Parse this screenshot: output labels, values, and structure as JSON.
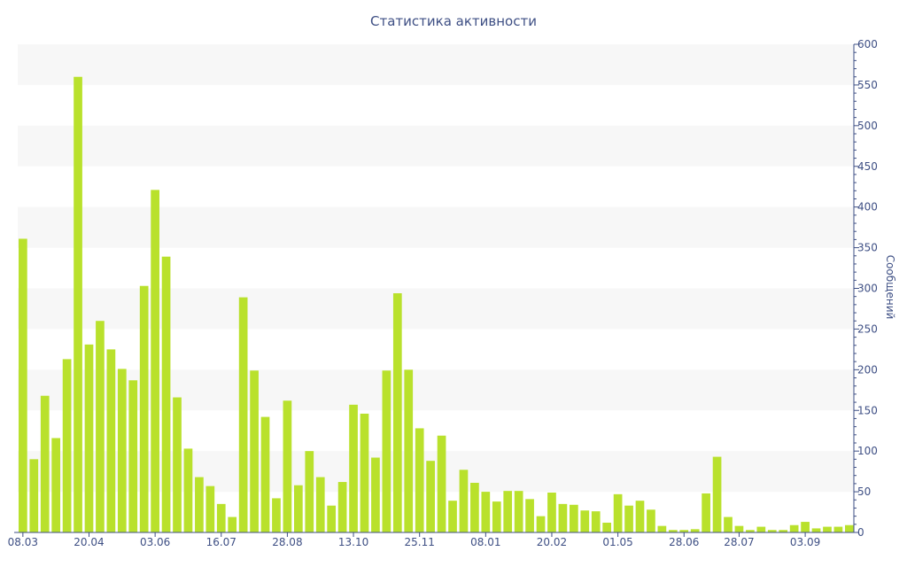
{
  "chart_data": {
    "type": "bar",
    "title": "Статистика активности",
    "ylabel": "Сообщений",
    "xlabel": "",
    "ylim": [
      0,
      600
    ],
    "yticks": [
      0,
      50,
      100,
      150,
      200,
      250,
      300,
      350,
      400,
      450,
      500,
      550,
      600
    ],
    "y_axis_side": "right",
    "grid": "alternating horizontal bands",
    "x_tick_labels": [
      {
        "label": "08.03",
        "index": 0
      },
      {
        "label": "20.04",
        "index": 6
      },
      {
        "label": "03.06",
        "index": 12
      },
      {
        "label": "16.07",
        "index": 18
      },
      {
        "label": "28.08",
        "index": 24
      },
      {
        "label": "13.10",
        "index": 30
      },
      {
        "label": "25.11",
        "index": 36
      },
      {
        "label": "08.01",
        "index": 42
      },
      {
        "label": "20.02",
        "index": 48
      },
      {
        "label": "01.05",
        "index": 54
      },
      {
        "label": "28.06",
        "index": 60
      },
      {
        "label": "28.07",
        "index": 65
      },
      {
        "label": "03.09",
        "index": 71
      }
    ],
    "values": [
      361,
      90,
      168,
      116,
      213,
      560,
      231,
      260,
      225,
      201,
      187,
      303,
      421,
      339,
      166,
      103,
      68,
      57,
      35,
      19,
      289,
      199,
      142,
      42,
      162,
      58,
      100,
      68,
      33,
      62,
      157,
      146,
      92,
      199,
      294,
      200,
      128,
      88,
      119,
      39,
      77,
      61,
      50,
      38,
      51,
      51,
      41,
      20,
      49,
      35,
      34,
      27,
      26,
      12,
      47,
      33,
      39,
      28,
      8,
      3,
      3,
      4,
      48,
      93,
      19,
      8,
      3,
      7,
      3,
      3,
      9,
      13,
      5,
      7,
      7,
      9
    ],
    "bar_color": "#b9e12c",
    "band_color": "#f7f7f7",
    "axis_color": "#3e4f84"
  }
}
